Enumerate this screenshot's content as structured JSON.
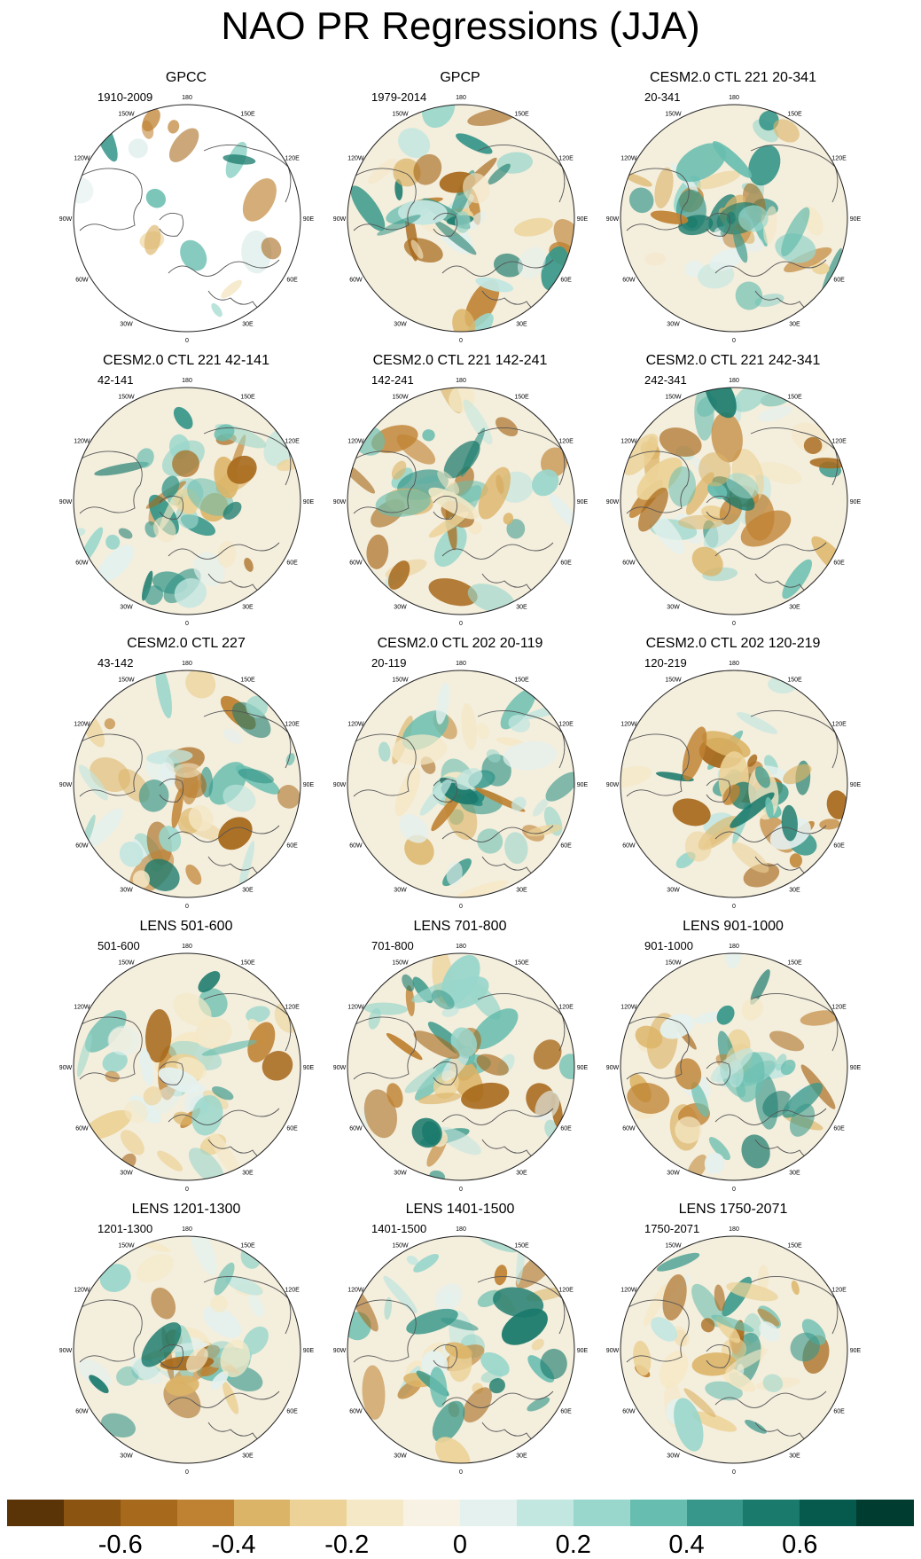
{
  "title": "NAO PR Regressions (JJA)",
  "lon_labels": [
    "180",
    "150E",
    "120E",
    "90E",
    "60E",
    "30E",
    "0",
    "30W",
    "60W",
    "90W",
    "120W",
    "150W"
  ],
  "panels": [
    {
      "title": "GPCC",
      "subtitle": "1910-2009",
      "masked": true
    },
    {
      "title": "GPCP",
      "subtitle": "1979-2014",
      "masked": false
    },
    {
      "title": "CESM2.0 CTL 221 20-341",
      "subtitle": "20-341",
      "masked": false
    },
    {
      "title": "CESM2.0 CTL 221 42-141",
      "subtitle": "42-141",
      "masked": false
    },
    {
      "title": "CESM2.0 CTL 221 142-241",
      "subtitle": "142-241",
      "masked": false
    },
    {
      "title": "CESM2.0 CTL 221 242-341",
      "subtitle": "242-341",
      "masked": false
    },
    {
      "title": "CESM2.0 CTL 227",
      "subtitle": "43-142",
      "masked": false
    },
    {
      "title": "CESM2.0 CTL 202 20-119",
      "subtitle": "20-119",
      "masked": false
    },
    {
      "title": "CESM2.0 CTL 202 120-219",
      "subtitle": "120-219",
      "masked": false
    },
    {
      "title": "LENS 501-600",
      "subtitle": "501-600",
      "masked": false
    },
    {
      "title": "LENS 701-800",
      "subtitle": "701-800",
      "masked": false
    },
    {
      "title": "LENS 901-1000",
      "subtitle": "901-1000",
      "masked": false
    },
    {
      "title": "LENS 1201-1300",
      "subtitle": "1201-1300",
      "masked": false
    },
    {
      "title": "LENS 1401-1500",
      "subtitle": "1401-1500",
      "masked": false
    },
    {
      "title": "LENS 1750-2071",
      "subtitle": "1750-2071",
      "masked": false
    }
  ],
  "colorbar": {
    "colors": [
      "#5a3306",
      "#8b5410",
      "#a7691c",
      "#bf8232",
      "#dcb467",
      "#ecd297",
      "#f5e8c6",
      "#f7f2e3",
      "#e4f1ef",
      "#c2e6e0",
      "#99d6cb",
      "#67bdaf",
      "#37978a",
      "#1a7a6c",
      "#05594d",
      "#003c30"
    ],
    "tick_labels": [
      "-0.6",
      "-0.4",
      "-0.2",
      "0",
      "0.2",
      "0.4",
      "0.6"
    ]
  }
}
